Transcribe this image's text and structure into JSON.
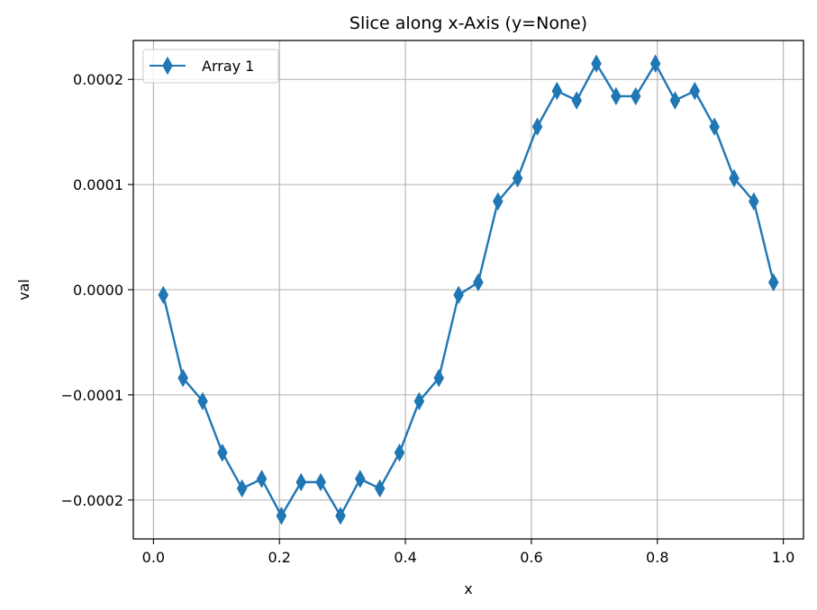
{
  "chart_data": {
    "type": "line",
    "title": "Slice along x-Axis (y=None)",
    "xlabel": "x",
    "ylabel": "val",
    "xlim": [
      -0.032,
      1.032
    ],
    "ylim": [
      -0.000237,
      0.000237
    ],
    "x_ticks": [
      0.0,
      0.2,
      0.4,
      0.6,
      0.8,
      1.0
    ],
    "x_tick_labels": [
      "0.0",
      "0.2",
      "0.4",
      "0.6",
      "0.8",
      "1.0"
    ],
    "y_ticks": [
      0.0002,
      0.0001,
      0.0,
      -0.0001,
      -0.0002
    ],
    "y_tick_labels": [
      "0.0002",
      "0.0001",
      "0.0000",
      "−0.0001",
      "−0.0002"
    ],
    "grid": true,
    "legend_position": "top-left",
    "colors": {
      "series": "#1f77b4"
    },
    "marker": "thin-diamond",
    "series": [
      {
        "name": "Array 1",
        "x": [
          0.0156,
          0.0469,
          0.0781,
          0.1094,
          0.1406,
          0.1719,
          0.2031,
          0.2344,
          0.2656,
          0.2969,
          0.3281,
          0.3594,
          0.3906,
          0.4219,
          0.4531,
          0.4844,
          0.5156,
          0.5469,
          0.5781,
          0.6094,
          0.6406,
          0.6719,
          0.7031,
          0.7344,
          0.7656,
          0.7969,
          0.8281,
          0.8594,
          0.8906,
          0.9219,
          0.9531,
          0.9844
        ],
        "values": [
          -5e-06,
          -8.4e-05,
          -0.000106,
          -0.000155,
          -0.000189,
          -0.00018,
          -0.000215,
          -0.000183,
          -0.000183,
          -0.000215,
          -0.00018,
          -0.000189,
          -0.000155,
          -0.000106,
          -8.4e-05,
          -5e-06,
          7e-06,
          8.4e-05,
          0.000106,
          0.000155,
          0.000189,
          0.00018,
          0.000215,
          0.000184,
          0.000184,
          0.000215,
          0.00018,
          0.000189,
          0.000155,
          0.000106,
          8.4e-05,
          7e-06
        ]
      }
    ]
  }
}
